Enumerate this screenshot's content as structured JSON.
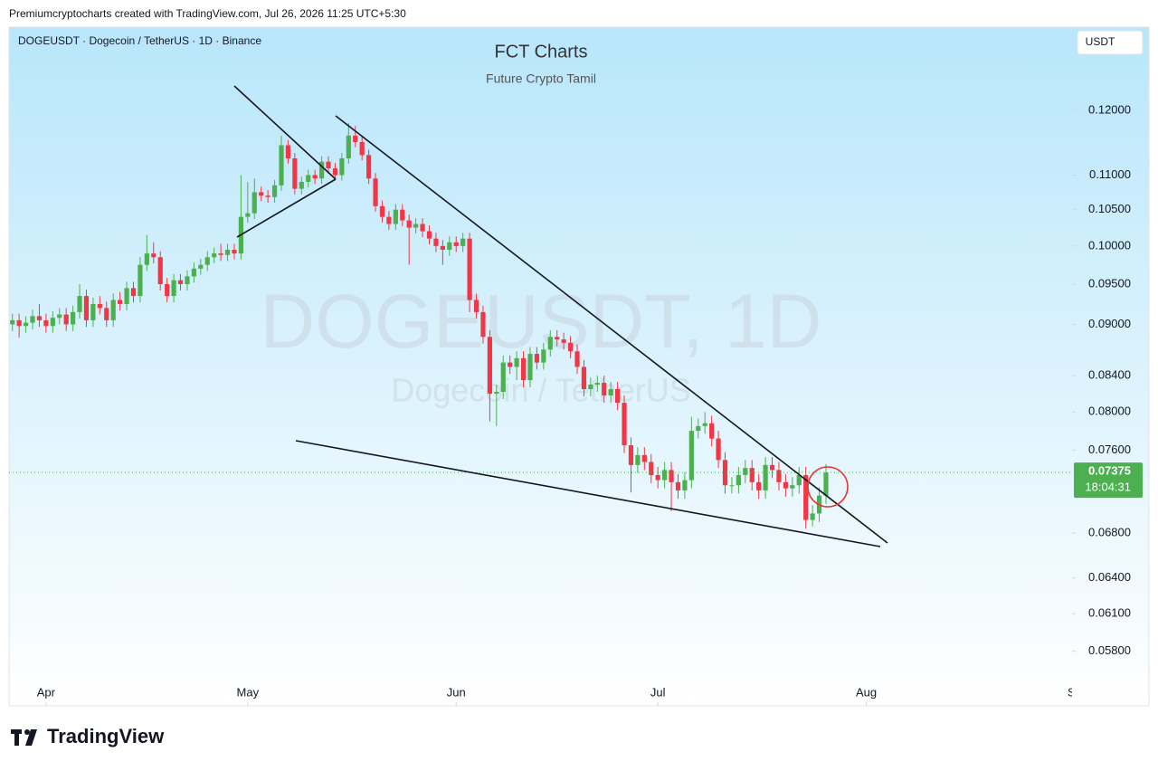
{
  "header": {
    "attribution": "Premiumcryptocharts created with TradingView.com, Jul 26, 2026 11:25 UTC+5:30",
    "brand": "TradingView"
  },
  "chart_data": {
    "type": "candlestick",
    "symbol": "DOGEUSDT · Dogecoin / TetherUS · 1D · Binance",
    "title": "FCT Charts",
    "subtitle": "Future Crypto Tamil",
    "watermark": "DOGEUSDT, 1D",
    "watermark_subtitle": "Dogecoin / TetherUS",
    "currency_button": "USDT",
    "last_price": 0.07375,
    "countdown": "18:04:31",
    "log_scale": true,
    "xlim": [
      -0.5,
      157.6
    ],
    "xticks": [
      {
        "value": 5,
        "label": "Apr"
      },
      {
        "value": 35,
        "label": "May"
      },
      {
        "value": 66,
        "label": "Jun"
      },
      {
        "value": 96,
        "label": "Jul"
      },
      {
        "value": 127,
        "label": "Aug"
      },
      {
        "value": 158,
        "label": "Se"
      }
    ],
    "ylim": [
      0.0559,
      0.1342
    ],
    "yticks": [
      {
        "value": 0.12,
        "label": "0.12000"
      },
      {
        "value": 0.11,
        "label": "0.11000"
      },
      {
        "value": 0.105,
        "label": "0.10500"
      },
      {
        "value": 0.1,
        "label": "0.10000"
      },
      {
        "value": 0.095,
        "label": "0.09500"
      },
      {
        "value": 0.09,
        "label": "0.09000"
      },
      {
        "value": 0.084,
        "label": "0.08400"
      },
      {
        "value": 0.08,
        "label": "0.08000"
      },
      {
        "value": 0.076,
        "label": "0.07600"
      },
      {
        "value": 0.068,
        "label": "0.06800"
      },
      {
        "value": 0.064,
        "label": "0.06400"
      },
      {
        "value": 0.061,
        "label": "0.06100"
      },
      {
        "value": 0.058,
        "label": "0.05800"
      }
    ],
    "up_color": "#4caf50",
    "down_color": "#f23645",
    "series": [
      {
        "open": [
          0.09,
          0.0905,
          0.0898,
          0.0902,
          0.091,
          0.0905,
          0.0898,
          0.0908,
          0.0912,
          0.09,
          0.0915,
          0.0935,
          0.0905,
          0.0925,
          0.092,
          0.0905,
          0.093,
          0.0925,
          0.0945,
          0.0935,
          0.0975,
          0.099,
          0.0985,
          0.095,
          0.0935,
          0.0955,
          0.095,
          0.096,
          0.097,
          0.0975,
          0.0985,
          0.099,
          0.0988,
          0.0995,
          0.099,
          0.104,
          0.1045,
          0.1075,
          0.107,
          0.1068,
          0.1085,
          0.1145,
          0.1125,
          0.108,
          0.109,
          0.11,
          0.1095,
          0.112,
          0.111,
          0.11,
          0.1125,
          0.116,
          0.115,
          0.113,
          0.1095,
          0.1055,
          0.104,
          0.103,
          0.105,
          0.1035,
          0.1025,
          0.103,
          0.102,
          0.101,
          0.1,
          0.0995,
          0.1005,
          0.1,
          0.101,
          0.093,
          0.0915,
          0.0885,
          0.082,
          0.0822,
          0.0855,
          0.085,
          0.086,
          0.0835,
          0.0865,
          0.0855,
          0.087,
          0.0885,
          0.0882,
          0.0878,
          0.0868,
          0.085,
          0.0825,
          0.083,
          0.0832,
          0.0818,
          0.0825,
          0.081,
          0.0765,
          0.0745,
          0.0755,
          0.0748,
          0.0735,
          0.073,
          0.074,
          0.0728,
          0.072,
          0.073,
          0.078,
          0.0785,
          0.0788,
          0.0772,
          0.075,
          0.0725,
          0.0725,
          0.0735,
          0.0742,
          0.0728,
          0.072,
          0.0745,
          0.074,
          0.0728,
          0.0722,
          0.0725,
          0.0735,
          0.0692,
          0.0698,
          0.0715
        ],
        "high": [
          0.0913,
          0.0913,
          0.091,
          0.0918,
          0.0925,
          0.0913,
          0.0916,
          0.092,
          0.092,
          0.0923,
          0.095,
          0.0943,
          0.0933,
          0.0935,
          0.0928,
          0.0938,
          0.094,
          0.0953,
          0.0953,
          0.0985,
          0.1015,
          0.1005,
          0.0993,
          0.0958,
          0.0963,
          0.0963,
          0.0968,
          0.0978,
          0.0983,
          0.0993,
          0.0998,
          0.1003,
          0.1003,
          0.1003,
          0.11,
          0.109,
          0.1095,
          0.1083,
          0.1078,
          0.1093,
          0.116,
          0.1153,
          0.1133,
          0.1098,
          0.1108,
          0.1108,
          0.1128,
          0.1128,
          0.1118,
          0.1133,
          0.118,
          0.1175,
          0.1158,
          0.1138,
          0.1103,
          0.1063,
          0.1048,
          0.1058,
          0.1058,
          0.1043,
          0.1038,
          0.1038,
          0.1028,
          0.1018,
          0.1008,
          0.1013,
          0.1013,
          0.1018,
          0.1018,
          0.0938,
          0.0923,
          0.0893,
          0.083,
          0.0863,
          0.0863,
          0.0868,
          0.0868,
          0.0873,
          0.0873,
          0.0878,
          0.0893,
          0.0893,
          0.089,
          0.0886,
          0.0876,
          0.0858,
          0.0838,
          0.084,
          0.084,
          0.0833,
          0.0833,
          0.0818,
          0.0773,
          0.0763,
          0.0763,
          0.0756,
          0.0743,
          0.0748,
          0.0748,
          0.0736,
          0.0738,
          0.0795,
          0.0793,
          0.08,
          0.0796,
          0.078,
          0.0758,
          0.0733,
          0.0743,
          0.075,
          0.075,
          0.0736,
          0.0753,
          0.0753,
          0.0748,
          0.0736,
          0.0733,
          0.0743,
          0.0743,
          0.0706,
          0.0723,
          0.0746
        ],
        "low": [
          0.0892,
          0.0884,
          0.089,
          0.0894,
          0.0897,
          0.089,
          0.089,
          0.09,
          0.0892,
          0.0892,
          0.0907,
          0.0897,
          0.0897,
          0.0912,
          0.0897,
          0.0897,
          0.0917,
          0.0917,
          0.0927,
          0.0927,
          0.0967,
          0.0977,
          0.0942,
          0.0927,
          0.0927,
          0.0942,
          0.0942,
          0.0952,
          0.0962,
          0.0967,
          0.0977,
          0.098,
          0.098,
          0.0982,
          0.0982,
          0.1032,
          0.1037,
          0.1062,
          0.106,
          0.106,
          0.1077,
          0.1117,
          0.1072,
          0.1072,
          0.1082,
          0.1087,
          0.1087,
          0.1102,
          0.1092,
          0.1092,
          0.1117,
          0.1142,
          0.1122,
          0.1087,
          0.1047,
          0.1032,
          0.1022,
          0.1022,
          0.1027,
          0.0975,
          0.1017,
          0.1012,
          0.1002,
          0.0992,
          0.0975,
          0.0987,
          0.0992,
          0.0992,
          0.0915,
          0.0907,
          0.0877,
          0.079,
          0.0785,
          0.0814,
          0.0842,
          0.0835,
          0.0827,
          0.0827,
          0.0847,
          0.0847,
          0.0862,
          0.0874,
          0.087,
          0.086,
          0.0842,
          0.0817,
          0.0817,
          0.0822,
          0.081,
          0.081,
          0.0802,
          0.0757,
          0.0718,
          0.0737,
          0.074,
          0.0727,
          0.0722,
          0.0722,
          0.07,
          0.0712,
          0.0712,
          0.0722,
          0.0772,
          0.0777,
          0.0764,
          0.0742,
          0.0717,
          0.0717,
          0.0717,
          0.0727,
          0.072,
          0.0712,
          0.0712,
          0.0732,
          0.072,
          0.0714,
          0.0714,
          0.0717,
          0.0684,
          0.0686,
          0.069,
          0.0707
        ],
        "close": [
          0.0905,
          0.0898,
          0.0902,
          0.091,
          0.0905,
          0.0898,
          0.0908,
          0.0912,
          0.09,
          0.0915,
          0.0935,
          0.0905,
          0.0925,
          0.092,
          0.0905,
          0.093,
          0.0925,
          0.0945,
          0.0935,
          0.0975,
          0.099,
          0.0985,
          0.095,
          0.0935,
          0.0955,
          0.095,
          0.096,
          0.097,
          0.0975,
          0.0985,
          0.099,
          0.0988,
          0.0995,
          0.099,
          0.104,
          0.1045,
          0.1075,
          0.107,
          0.1068,
          0.1085,
          0.1145,
          0.1125,
          0.108,
          0.109,
          0.11,
          0.1095,
          0.112,
          0.111,
          0.11,
          0.1125,
          0.116,
          0.115,
          0.113,
          0.1095,
          0.1055,
          0.104,
          0.103,
          0.105,
          0.1035,
          0.1025,
          0.103,
          0.102,
          0.101,
          0.1,
          0.0995,
          0.1005,
          0.1,
          0.101,
          0.093,
          0.0915,
          0.0885,
          0.082,
          0.0822,
          0.0855,
          0.085,
          0.086,
          0.0835,
          0.0865,
          0.0855,
          0.087,
          0.0885,
          0.0882,
          0.0878,
          0.0868,
          0.085,
          0.0825,
          0.083,
          0.0832,
          0.0818,
          0.0825,
          0.081,
          0.0765,
          0.0745,
          0.0755,
          0.0748,
          0.0735,
          0.073,
          0.074,
          0.0728,
          0.072,
          0.073,
          0.078,
          0.0785,
          0.0788,
          0.0772,
          0.075,
          0.0725,
          0.0725,
          0.0735,
          0.0742,
          0.0728,
          0.072,
          0.0745,
          0.074,
          0.0728,
          0.0722,
          0.0725,
          0.0735,
          0.0692,
          0.0698,
          0.0715,
          0.07375
        ]
      }
    ]
  }
}
